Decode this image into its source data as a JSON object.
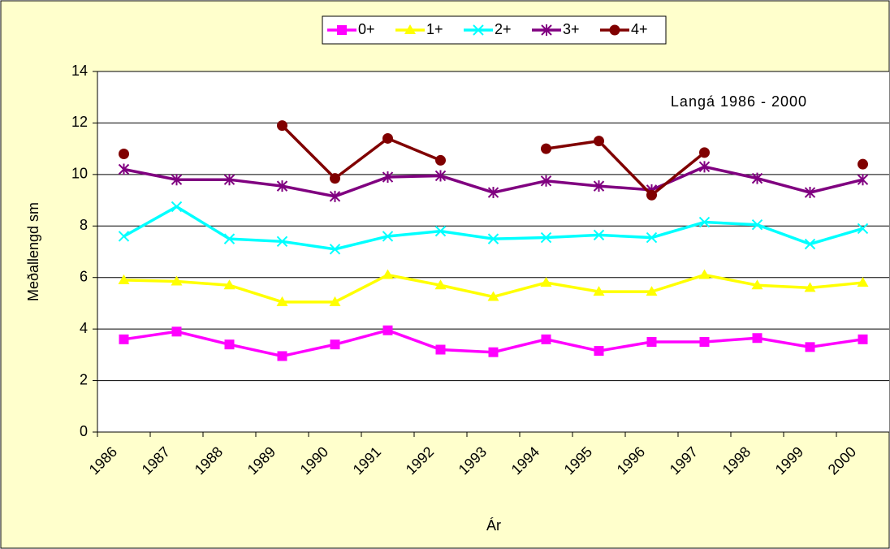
{
  "chart_data": {
    "type": "line",
    "annotation": "Langá 1986 - 2000",
    "y_label": "Meðallengd sm",
    "x_label": "Ár",
    "categories": [
      "1986",
      "1987",
      "1988",
      "1989",
      "1990",
      "1991",
      "1992",
      "1993",
      "1994",
      "1995",
      "1996",
      "1997",
      "1998",
      "1999",
      "2000"
    ],
    "series": [
      {
        "name": "0+",
        "color": "#ff00ff",
        "marker": "square",
        "values": [
          3.6,
          3.9,
          3.4,
          2.95,
          3.4,
          3.95,
          3.2,
          3.1,
          3.6,
          3.15,
          3.5,
          3.5,
          3.65,
          3.3,
          3.6
        ]
      },
      {
        "name": "1+",
        "color": "#ffff00",
        "marker": "triangle",
        "values": [
          5.9,
          5.85,
          5.7,
          5.05,
          5.05,
          6.1,
          5.7,
          5.25,
          5.8,
          5.45,
          5.45,
          6.1,
          5.7,
          5.6,
          5.8
        ]
      },
      {
        "name": "2+",
        "color": "#00ffff",
        "marker": "x",
        "values": [
          7.6,
          8.75,
          7.5,
          7.4,
          7.1,
          7.6,
          7.8,
          7.5,
          7.55,
          7.65,
          7.55,
          8.15,
          8.05,
          7.3,
          7.9
        ]
      },
      {
        "name": "3+",
        "color": "#800080",
        "marker": "star",
        "values": [
          10.2,
          9.8,
          9.8,
          9.55,
          9.15,
          9.9,
          9.95,
          9.3,
          9.75,
          9.55,
          9.4,
          10.3,
          9.85,
          9.3,
          9.8
        ]
      },
      {
        "name": "4+",
        "color": "#800000",
        "marker": "circle",
        "values": [
          10.8,
          null,
          null,
          11.9,
          9.85,
          11.4,
          10.55,
          null,
          11.0,
          11.3,
          9.2,
          10.85,
          null,
          null,
          10.4
        ]
      }
    ],
    "ylim": [
      0,
      14
    ],
    "yticks": [
      0,
      2,
      4,
      6,
      8,
      10,
      12,
      14
    ],
    "grid": true,
    "legend": "top"
  }
}
